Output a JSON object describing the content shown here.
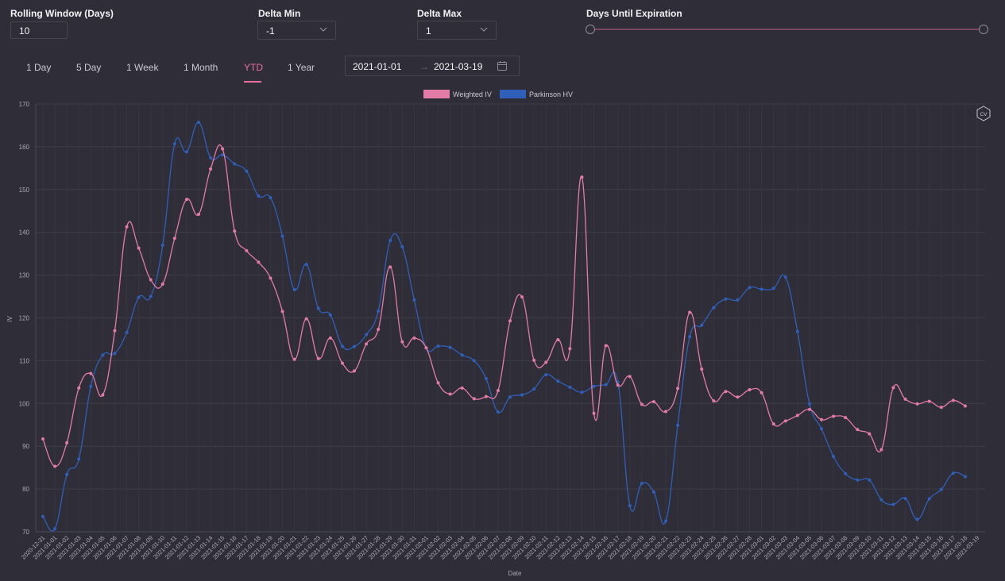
{
  "controls": {
    "rolling_window": {
      "label": "Rolling Window (Days)",
      "value": "10"
    },
    "delta_min": {
      "label": "Delta Min",
      "value": "-1"
    },
    "delta_max": {
      "label": "Delta Max",
      "value": "1"
    },
    "days_until_expiration": {
      "label": "Days Until Expiration",
      "range_fraction": [
        0,
        1
      ]
    }
  },
  "tabs": [
    {
      "label": "1 Day",
      "active": false
    },
    {
      "label": "5 Day",
      "active": false
    },
    {
      "label": "1 Week",
      "active": false
    },
    {
      "label": "1 Month",
      "active": false
    },
    {
      "label": "YTD",
      "active": true
    },
    {
      "label": "1 Year",
      "active": false
    }
  ],
  "date_range": {
    "start": "2021-01-01",
    "arrow": "→",
    "end": "2021-03-19"
  },
  "colors": {
    "accent": "#e86f9e",
    "weighted_iv": "#e27ba6",
    "parkinson_hv": "#2f5fb8",
    "background": "#2f2e38"
  },
  "icons": [
    "chevron-down-icon",
    "calendar-icon",
    "logo-watermark-icon"
  ],
  "chart_data": {
    "type": "line",
    "xlabel": "Date",
    "ylabel": "IV",
    "ylim": [
      70,
      170
    ],
    "yticks": [
      70,
      80,
      90,
      100,
      110,
      120,
      130,
      140,
      150,
      160,
      170
    ],
    "grid": true,
    "legend": "top-center",
    "x": [
      "2020-12-31",
      "2021-01-01",
      "2021-01-02",
      "2021-01-03",
      "2021-01-04",
      "2021-01-05",
      "2021-01-06",
      "2021-01-07",
      "2021-01-08",
      "2021-01-09",
      "2021-01-10",
      "2021-01-11",
      "2021-01-12",
      "2021-01-13",
      "2021-01-14",
      "2021-01-15",
      "2021-01-16",
      "2021-01-17",
      "2021-01-18",
      "2021-01-19",
      "2021-01-20",
      "2021-01-21",
      "2021-01-22",
      "2021-01-23",
      "2021-01-24",
      "2021-01-25",
      "2021-01-26",
      "2021-01-27",
      "2021-01-28",
      "2021-01-29",
      "2021-01-30",
      "2021-01-31",
      "2021-02-01",
      "2021-02-02",
      "2021-02-03",
      "2021-02-04",
      "2021-02-05",
      "2021-02-06",
      "2021-02-07",
      "2021-02-08",
      "2021-02-09",
      "2021-02-10",
      "2021-02-11",
      "2021-02-12",
      "2021-02-13",
      "2021-02-14",
      "2021-02-15",
      "2021-02-16",
      "2021-02-17",
      "2021-02-18",
      "2021-02-19",
      "2021-02-20",
      "2021-02-21",
      "2021-02-22",
      "2021-02-23",
      "2021-02-24",
      "2021-02-25",
      "2021-02-26",
      "2021-02-27",
      "2021-02-28",
      "2021-03-01",
      "2021-03-02",
      "2021-03-03",
      "2021-03-04",
      "2021-03-05",
      "2021-03-06",
      "2021-03-07",
      "2021-03-08",
      "2021-03-09",
      "2021-03-10",
      "2021-03-11",
      "2021-03-12",
      "2021-03-13",
      "2021-03-14",
      "2021-03-15",
      "2021-03-16",
      "2021-03-17",
      "2021-03-18",
      "2021-03-19"
    ],
    "series": [
      {
        "name": "Weighted IV",
        "values": [
          91.7,
          85.3,
          90.8,
          103.6,
          107.0,
          102.0,
          117.0,
          141.3,
          136.3,
          128.9,
          127.9,
          138.6,
          147.7,
          144.2,
          154.8,
          159.5,
          140.3,
          135.7,
          133.0,
          129.3,
          121.5,
          110.3,
          119.8,
          110.5,
          115.3,
          109.4,
          107.6,
          113.9,
          117.3,
          131.9,
          114.4,
          115.3,
          113.0,
          104.8,
          102.2,
          103.6,
          101.1,
          101.6,
          103.0,
          119.3,
          124.9,
          110.1,
          109.6,
          114.9,
          112.8,
          152.9,
          97.7,
          113.5,
          104.3,
          106.3,
          99.8,
          100.4,
          98.1,
          103.5,
          121.3,
          108.0,
          100.6,
          102.8,
          101.5,
          103.2,
          102.5,
          95.2,
          95.9,
          97.2,
          98.6,
          96.2,
          97.0,
          96.7,
          93.9,
          92.9,
          89.2,
          103.7,
          101.0,
          99.9,
          100.5,
          99.1,
          100.7,
          99.4,
          null
        ]
      },
      {
        "name": "Parkinson HV",
        "values": [
          73.6,
          70.7,
          83.4,
          87.0,
          104.0,
          111.3,
          111.7,
          116.6,
          124.8,
          125.0,
          137.0,
          160.7,
          158.8,
          165.7,
          157.4,
          158.1,
          156.0,
          154.3,
          148.5,
          148.1,
          139.1,
          126.6,
          132.5,
          122.2,
          120.7,
          113.4,
          113.3,
          116.1,
          121.6,
          138.1,
          136.6,
          124.2,
          113.0,
          113.4,
          113.1,
          111.3,
          110.0,
          105.8,
          98.0,
          101.5,
          102.0,
          103.4,
          106.7,
          105.2,
          103.8,
          102.6,
          104.0,
          104.4,
          105.0,
          76.1,
          81.3,
          79.3,
          72.5,
          94.9,
          115.6,
          118.3,
          122.4,
          124.4,
          124.2,
          127.1,
          126.7,
          126.9,
          129.5,
          116.8,
          99.9,
          94.1,
          87.6,
          83.6,
          82.1,
          82.1,
          77.5,
          76.4,
          77.8,
          72.9,
          77.7,
          79.9,
          83.7,
          82.9,
          null
        ]
      }
    ]
  }
}
